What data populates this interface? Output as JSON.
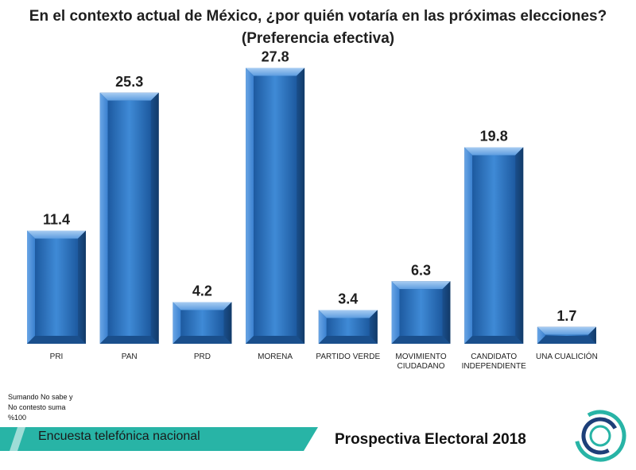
{
  "header": {
    "title_line1": "En el contexto actual de México, ¿por quién votaría en las próximas elecciones?",
    "title_line2": "(Preferencia efectiva)"
  },
  "chart_data": {
    "type": "bar",
    "title": "En el contexto actual de México, ¿por quién votaría en las próximas elecciones? (Preferencia efectiva)",
    "categories": [
      [
        "PRI"
      ],
      [
        "PAN"
      ],
      [
        "PRD"
      ],
      [
        "MORENA"
      ],
      [
        "PARTIDO VERDE"
      ],
      [
        "MOVIMIENTO",
        "CIUDADANO"
      ],
      [
        "CANDIDATO",
        "INDEPENDIENTE"
      ],
      [
        "UNA CUALICIÓN"
      ]
    ],
    "values": [
      11.4,
      25.3,
      4.2,
      27.8,
      3.4,
      6.3,
      19.8,
      1.7
    ],
    "value_labels": [
      "11.4",
      "25.3",
      "4.2",
      "27.8",
      "3.4",
      "6.3",
      "19.8",
      "1.7"
    ],
    "xlabel": "",
    "ylabel": "",
    "ylim": [
      0,
      30
    ],
    "grid": false,
    "bar_color": "#2e75c0",
    "bar_color_light": "#7fb1e6",
    "bar_color_dark": "#1a4f8c"
  },
  "notes": {
    "line1": "Sumando No sabe y",
    "line2": "No contesto suma",
    "line3": "%100"
  },
  "footer": {
    "survey_label": "Encuesta telefónica nacional",
    "brand_title": "Prospectiva Electoral 2018",
    "band_color": "#28b4a6"
  }
}
